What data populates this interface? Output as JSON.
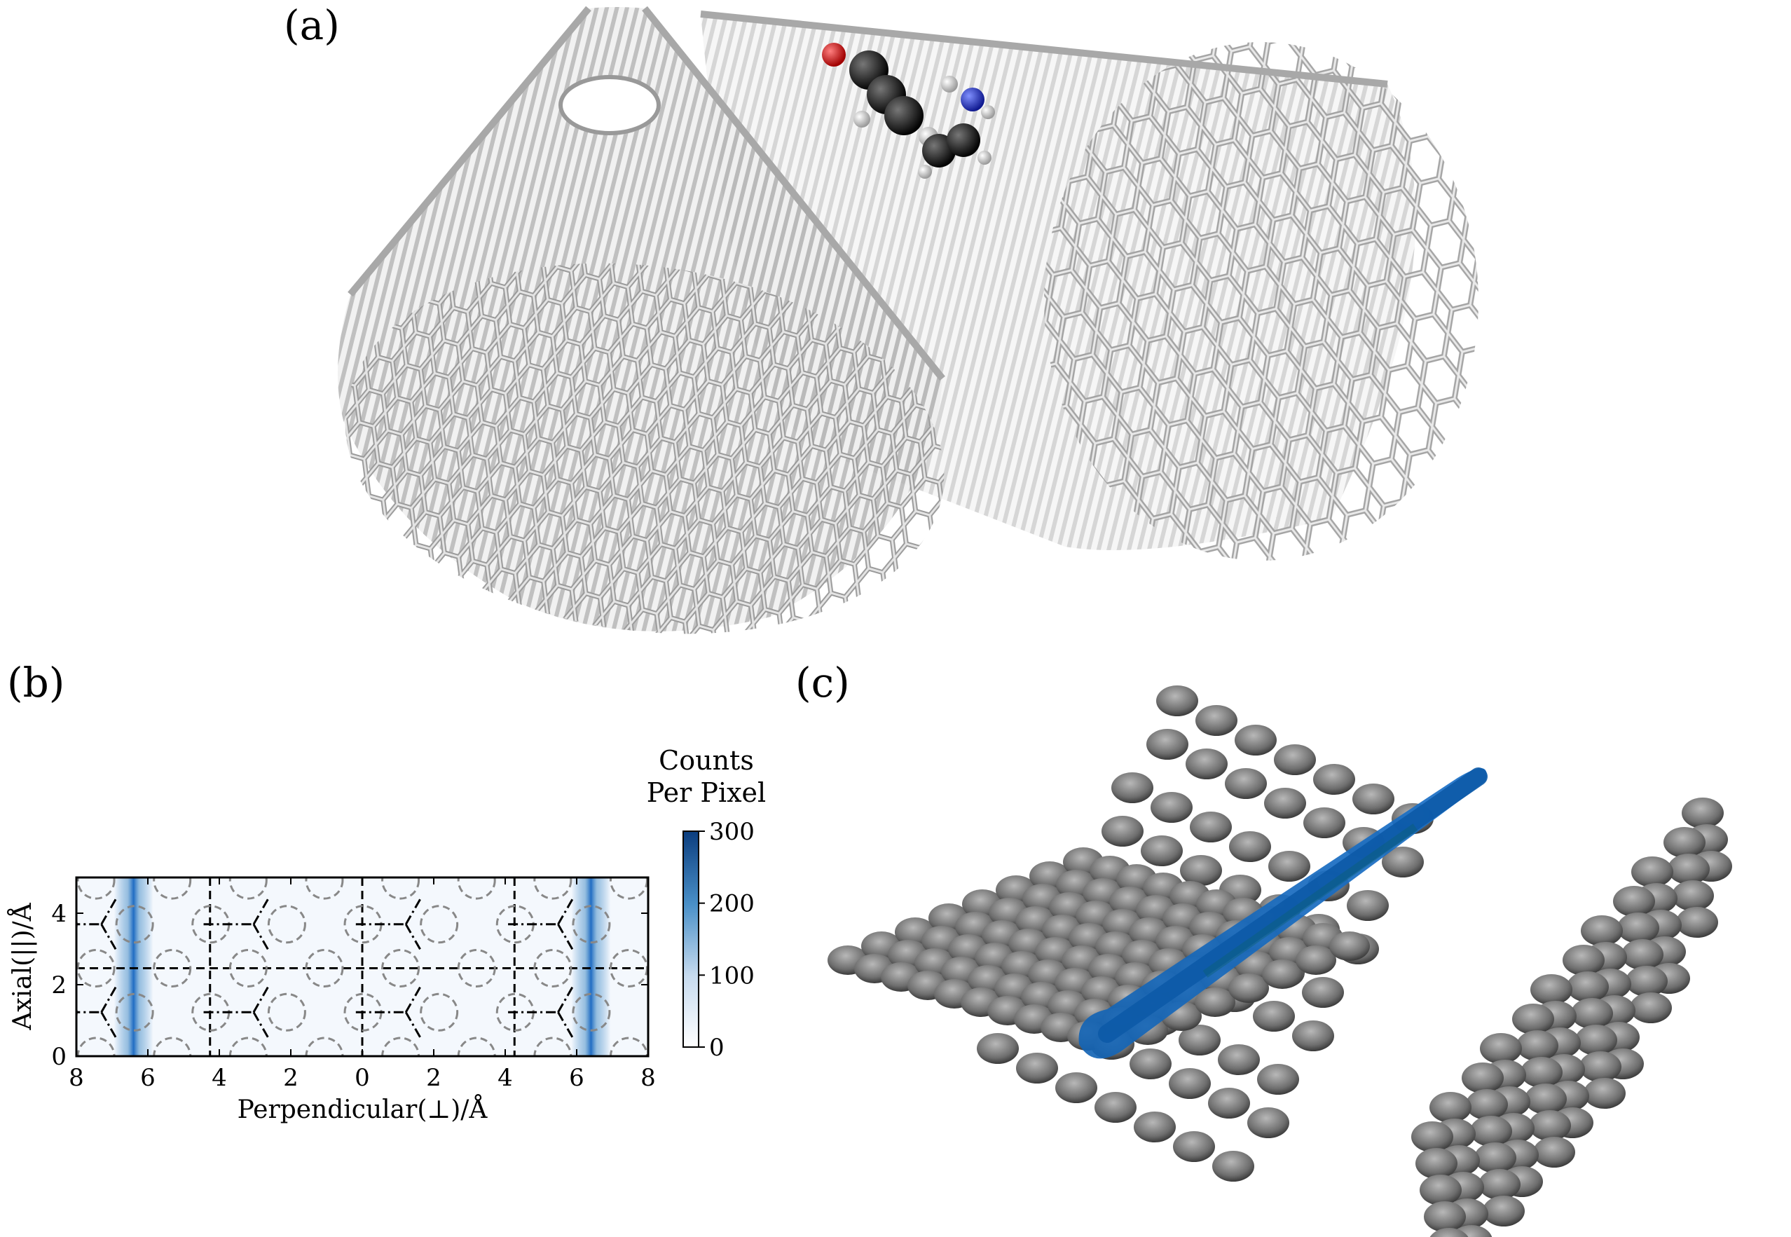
{
  "panels": {
    "a": {
      "label": "(a)"
    },
    "b": {
      "label": "(b)"
    },
    "c": {
      "label": "(c)"
    }
  },
  "chart_data": {
    "type": "heatmap",
    "title": "",
    "xlabel": "Perpendicular(⊥)/Å",
    "ylabel": "Axial(||)/Å",
    "xlim": [
      8,
      -8
    ],
    "ylim": [
      0,
      5
    ],
    "x_ticks": [
      "8",
      "6",
      "4",
      "2",
      "0",
      "2",
      "4",
      "6",
      "8"
    ],
    "y_ticks": [
      "0",
      "2",
      "4"
    ],
    "colorbar": {
      "title_line1": "Counts",
      "title_line2": "Per Pixel",
      "range": [
        0,
        300
      ],
      "ticks": [
        "0",
        "100",
        "200",
        "300"
      ],
      "colors": [
        "#ffffff",
        "#0b3d7e"
      ]
    },
    "density_bands": [
      {
        "x": -6.4,
        "peak_counts": 300
      },
      {
        "x": 6.4,
        "peak_counts": 300
      }
    ],
    "vertical_dashed_lines_x": [
      -4.26,
      0,
      4.26
    ],
    "horizontal_dashed_line_y": 2.46,
    "atom_sites_y": [
      1.23,
      3.69
    ],
    "accent_colors": {
      "density": "#1565c0",
      "oxygen": "#d62020",
      "nitrogen": "#2030c8",
      "carbon": "#111111"
    }
  }
}
